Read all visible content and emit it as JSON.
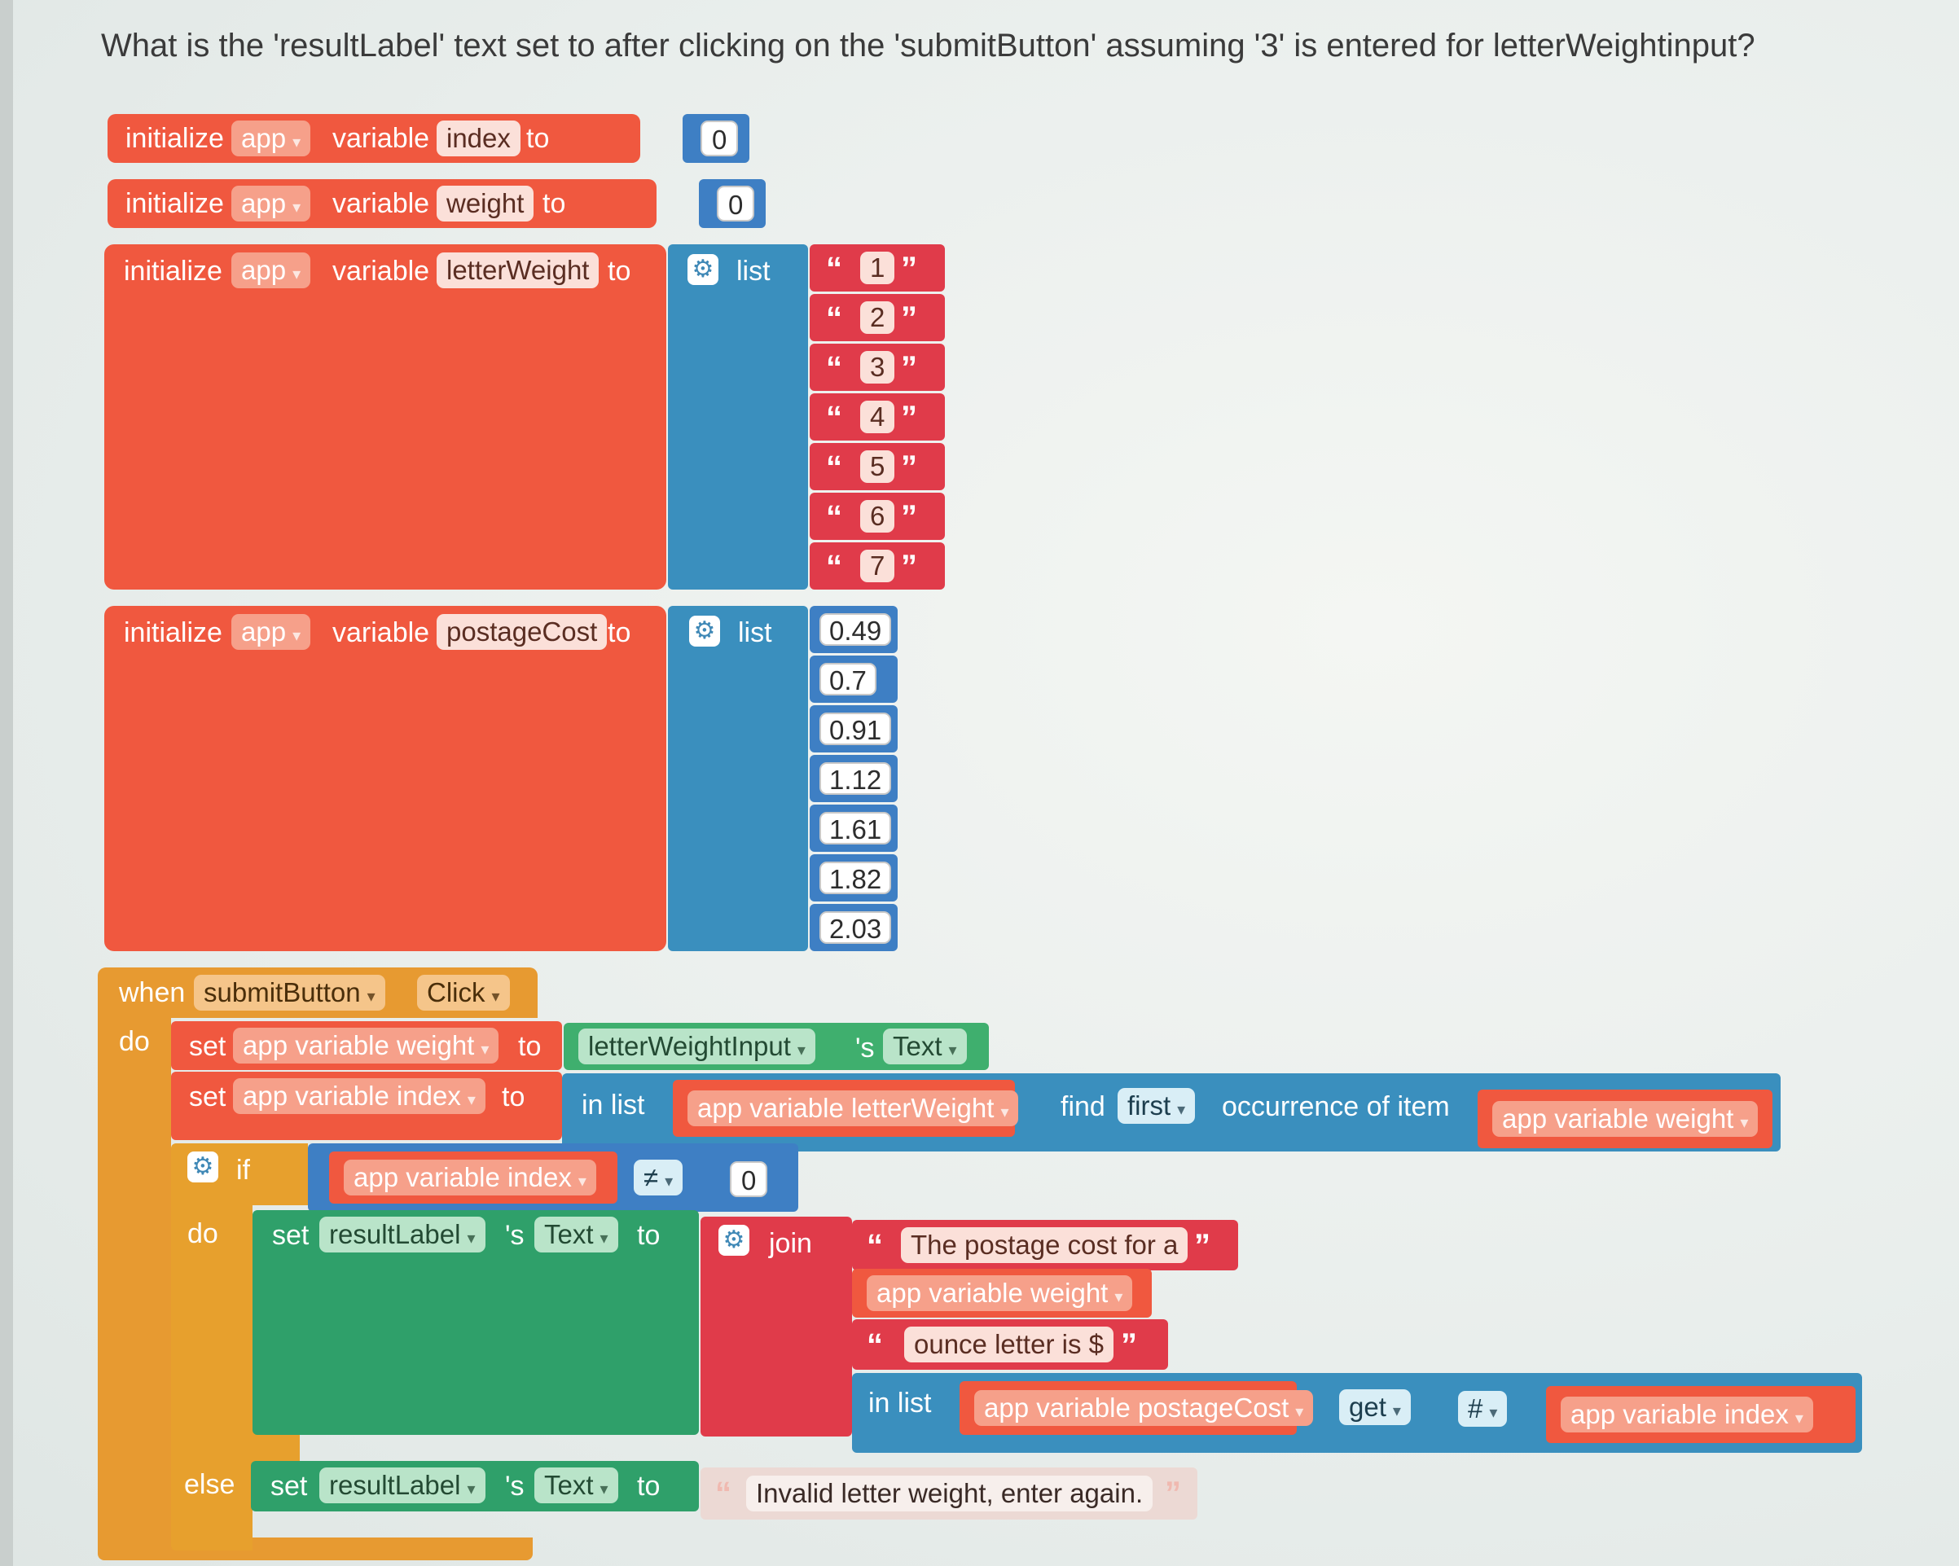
{
  "question": "What is the 'resultLabel' text set to after clicking on the 'submitButton' assuming '3' is entered for letterWeightinput?",
  "colors": {
    "global_var": "#f0583f",
    "list_block": "#3a8fbe",
    "text_block": "#e03b4a",
    "event_block": "#e79a31",
    "component_block": "#3faf6e",
    "control_block": "#e7a02d",
    "math_block": "#3e7fc4"
  },
  "init_blocks": [
    {
      "keyword": "initialize",
      "scope": "app",
      "var_label": "variable",
      "name": "index",
      "to": "to",
      "value": "0"
    },
    {
      "keyword": "initialize",
      "scope": "app",
      "var_label": "variable",
      "name": "weight",
      "to": "to",
      "value": "0"
    },
    {
      "keyword": "initialize",
      "scope": "app",
      "var_label": "variable",
      "name": "letterWeight",
      "to": "to",
      "list_label": "list",
      "items": [
        "1",
        "2",
        "3",
        "4",
        "5",
        "6",
        "7"
      ]
    },
    {
      "keyword": "initialize",
      "scope": "app",
      "var_label": "variable",
      "name": "postageCost",
      "to": "to",
      "list_label": "list",
      "items": [
        "0.49",
        "0.7",
        "0.91",
        "1.12",
        "1.61",
        "1.82",
        "2.03"
      ]
    }
  ],
  "event": {
    "when": "when",
    "component": "submitButton",
    "event_name": "Click",
    "do": "do",
    "set1": {
      "set": "set",
      "var": "app variable weight",
      "to": "to",
      "component": "letterWeightInput",
      "possessive": "'s",
      "prop": "Text"
    },
    "set2": {
      "set": "set",
      "var": "app variable index",
      "to": "to",
      "in_list": "in list",
      "list_var": "app variable letterWeight",
      "find": "find",
      "first": "first",
      "occurrence": "occurrence of item",
      "item_var": "app variable weight"
    },
    "if_block": {
      "if": "if",
      "cond_var": "app variable index",
      "op": "≠",
      "cond_value": "0",
      "do": "do",
      "set": "set",
      "component": "resultLabel",
      "possessive": "'s",
      "prop": "Text",
      "to": "to",
      "join": "join",
      "join_text1": "The postage cost for a",
      "join_var": "app variable weight",
      "join_text2": "ounce letter is $",
      "in_list": "in list",
      "list_var": "app variable postageCost",
      "get": "get",
      "hash": "#",
      "index_var": "app variable index",
      "else": "else",
      "else_set": "set",
      "else_component": "resultLabel",
      "else_possessive": "'s",
      "else_prop": "Text",
      "else_to": "to",
      "else_text": "Invalid letter weight, enter again."
    }
  }
}
